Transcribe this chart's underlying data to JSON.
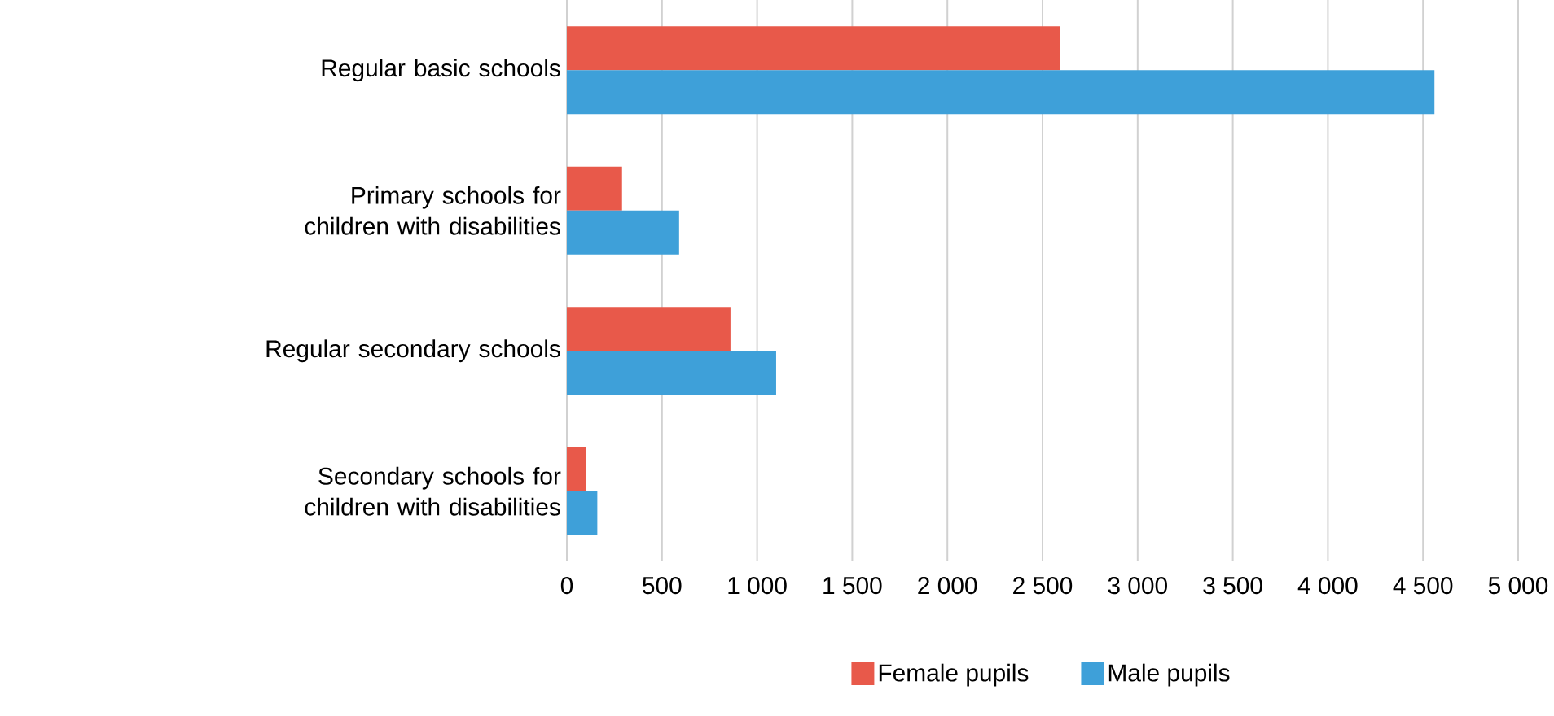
{
  "chart_data": {
    "type": "bar",
    "orientation": "horizontal",
    "categories": [
      "Regular basic schools",
      "Primary schools for children with disabilities",
      "Regular secondary schools",
      "Secondary schools for children with disabilities"
    ],
    "series": [
      {
        "name": "Female pupils",
        "color": "#e8594a",
        "values": [
          2590,
          290,
          860,
          100
        ]
      },
      {
        "name": "Male pupils",
        "color": "#3ea0d9",
        "values": [
          4560,
          590,
          1100,
          160
        ]
      }
    ],
    "xlim": [
      0,
      5000
    ],
    "xticks": [
      0,
      500,
      {
        "value": 1000,
        "label": "1 000"
      },
      {
        "value": 1500,
        "label": "1 500"
      },
      {
        "value": 2000,
        "label": "2 000"
      },
      {
        "value": 2500,
        "label": "2 500"
      },
      {
        "value": 3000,
        "label": "3 000"
      },
      {
        "value": 3500,
        "label": "3 500"
      },
      {
        "value": 4000,
        "label": "4 000"
      },
      {
        "value": 4500,
        "label": "4 500"
      },
      {
        "value": 5000,
        "label": "5 000"
      }
    ],
    "grid": "x",
    "legend": "bottom"
  }
}
